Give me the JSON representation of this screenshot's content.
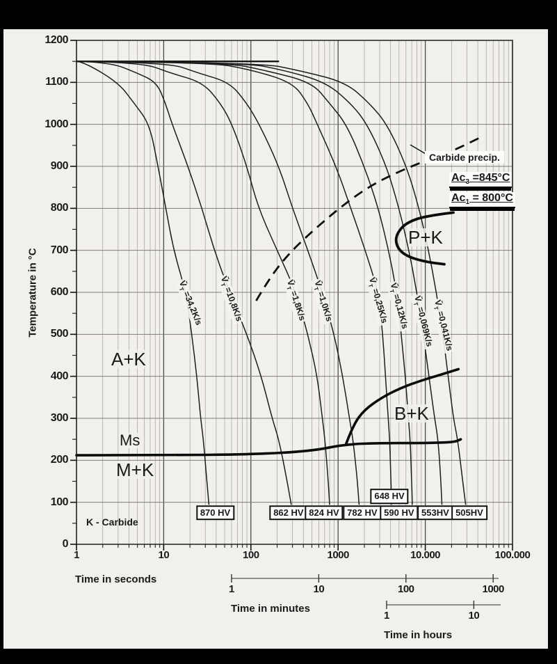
{
  "y_axis": {
    "label": "Temperature in °C",
    "ticks": [
      "0",
      "100",
      "200",
      "300",
      "400",
      "500",
      "600",
      "700",
      "800",
      "900",
      "1000",
      "1100",
      "1200"
    ],
    "min": 0,
    "max": 1200
  },
  "x_axis_seconds": {
    "label": "Time in seconds",
    "ticks": [
      "1",
      "10",
      "100",
      "1000",
      "10.000",
      "100.000"
    ]
  },
  "x_axis_minutes": {
    "label": "Time in minutes",
    "ticks": [
      "1",
      "10",
      "100",
      "1000"
    ]
  },
  "x_axis_hours": {
    "label": "Time in hours",
    "ticks": [
      "1",
      "10"
    ]
  },
  "regions": {
    "austenite_carbide": "A+K",
    "pearlite_carbide": "P+K",
    "bainite_carbide": "B+K",
    "martensite_start": "Ms",
    "martensite_carbide": "M+K"
  },
  "annotations": {
    "carbide_precip": "Carbide precip.",
    "ac3": {
      "prefix": "Ac",
      "sub": "3",
      "value": "=845°C"
    },
    "ac1": {
      "prefix": "Ac",
      "sub": "1",
      "value": "= 800°C"
    },
    "k_legend": "K - Carbide"
  },
  "chart_data": {
    "type": "line",
    "x_scale": "log",
    "x_range_seconds": [
      1,
      100000
    ],
    "y_range_celsius": [
      0,
      1200
    ],
    "austenitization_temp_c": 1150,
    "grid": true,
    "vt_prefix": "V̄",
    "vt_sub": "T",
    "series": [
      {
        "name": "cooling-curve-34.2",
        "rate_k_per_s": 34.2,
        "label": "=34,2K/s",
        "hardness_hv": 870,
        "label_t": 19.6,
        "label_temp": 574,
        "label_angle": 68,
        "points": [
          [
            1,
            1150
          ],
          [
            1.2,
            1149
          ],
          [
            3,
            1100
          ],
          [
            4.6,
            1050
          ],
          [
            6.9,
            1000
          ],
          [
            8.6,
            900
          ],
          [
            10.6,
            800
          ],
          [
            13,
            700
          ],
          [
            18,
            600
          ],
          [
            21,
            500
          ],
          [
            24,
            400
          ],
          [
            26.5,
            300
          ],
          [
            28.5,
            250
          ],
          [
            31,
            160
          ],
          [
            33,
            95
          ]
        ]
      },
      {
        "name": "cooling-curve-10.8",
        "rate_k_per_s": 10.8,
        "label": "=10,8K/s",
        "hardness_hv": 862,
        "label_t": 58,
        "label_temp": 584,
        "label_angle": 70,
        "points": [
          [
            1,
            1150
          ],
          [
            2.4,
            1148
          ],
          [
            5,
            1122
          ],
          [
            8.3,
            1100
          ],
          [
            10.5,
            1050
          ],
          [
            12.5,
            1000
          ],
          [
            19,
            900
          ],
          [
            27.5,
            800
          ],
          [
            38,
            700
          ],
          [
            57,
            600
          ],
          [
            90,
            500
          ],
          [
            132,
            400
          ],
          [
            175,
            300
          ],
          [
            209,
            250
          ],
          [
            255,
            160
          ],
          [
            290,
            95
          ]
        ]
      },
      {
        "name": "cooling-curve-1.8",
        "rate_k_per_s": 1.8,
        "label": "=1,8K/s",
        "hardness_hv": 824,
        "label_t": 320,
        "label_temp": 580,
        "label_angle": 72,
        "points": [
          [
            1,
            1150
          ],
          [
            5.5,
            1148
          ],
          [
            12,
            1122
          ],
          [
            28,
            1100
          ],
          [
            45,
            1050
          ],
          [
            61,
            1000
          ],
          [
            90,
            900
          ],
          [
            122,
            800
          ],
          [
            200,
            700
          ],
          [
            330,
            600
          ],
          [
            450,
            500
          ],
          [
            577,
            400
          ],
          [
            660,
            300
          ],
          [
            705,
            250
          ],
          [
            765,
            160
          ],
          [
            800,
            95
          ]
        ]
      },
      {
        "name": "cooling-curve-1.0",
        "rate_k_per_s": 1.0,
        "label": "=1,0K/s",
        "hardness_hv": 782,
        "label_t": 650,
        "label_temp": 579,
        "label_angle": 73,
        "points": [
          [
            1,
            1150
          ],
          [
            11,
            1148
          ],
          [
            25,
            1122
          ],
          [
            57,
            1100
          ],
          [
            90,
            1050
          ],
          [
            125,
            1000
          ],
          [
            210,
            900
          ],
          [
            300,
            800
          ],
          [
            450,
            700
          ],
          [
            660,
            600
          ],
          [
            900,
            500
          ],
          [
            1130,
            400
          ],
          [
            1350,
            300
          ],
          [
            1480,
            250
          ],
          [
            1650,
            160
          ],
          [
            1740,
            95
          ]
        ]
      },
      {
        "name": "cooling-curve-0.25",
        "rate_k_per_s": 0.25,
        "label": "=0,25K/s",
        "hardness_hv": 648,
        "label_t": 2800,
        "label_temp": 580,
        "label_angle": 74,
        "points": [
          [
            1,
            1150
          ],
          [
            33,
            1148
          ],
          [
            100,
            1130
          ],
          [
            300,
            1100
          ],
          [
            450,
            1050
          ],
          [
            577,
            1000
          ],
          [
            950,
            900
          ],
          [
            1400,
            800
          ],
          [
            2050,
            700
          ],
          [
            2900,
            600
          ],
          [
            3250,
            500
          ],
          [
            3500,
            400
          ],
          [
            3750,
            300
          ],
          [
            3900,
            250
          ],
          [
            4030,
            160
          ],
          [
            4100,
            95
          ]
        ]
      },
      {
        "name": "cooling-curve-0.12",
        "rate_k_per_s": 0.12,
        "label": "=0,12K/s",
        "hardness_hv": 590,
        "label_t": 4800,
        "label_temp": 567,
        "label_angle": 75,
        "points": [
          [
            1,
            1150
          ],
          [
            50,
            1148
          ],
          [
            150,
            1128
          ],
          [
            500,
            1100
          ],
          [
            800,
            1050
          ],
          [
            1250,
            1000
          ],
          [
            2000,
            900
          ],
          [
            2900,
            800
          ],
          [
            3800,
            700
          ],
          [
            4700,
            600
          ],
          [
            5300,
            500
          ],
          [
            5900,
            400
          ],
          [
            6400,
            300
          ],
          [
            6700,
            250
          ],
          [
            6950,
            160
          ],
          [
            7100,
            95
          ]
        ]
      },
      {
        "name": "cooling-curve-0.069",
        "rate_k_per_s": 0.069,
        "label": "=0,069K/s",
        "hardness_hv": 553,
        "label_t": 9200,
        "label_temp": 531,
        "label_angle": 76,
        "points": [
          [
            1,
            1150
          ],
          [
            80,
            1148
          ],
          [
            250,
            1128
          ],
          [
            725,
            1100
          ],
          [
            1400,
            1050
          ],
          [
            2170,
            1000
          ],
          [
            3600,
            900
          ],
          [
            5000,
            800
          ],
          [
            6500,
            700
          ],
          [
            8000,
            600
          ],
          [
            9500,
            500
          ],
          [
            11000,
            400
          ],
          [
            12800,
            300
          ],
          [
            14000,
            250
          ],
          [
            15000,
            160
          ],
          [
            15500,
            95
          ]
        ]
      },
      {
        "name": "cooling-curve-0.041",
        "rate_k_per_s": 0.041,
        "label": "=0,041K/s",
        "hardness_hv": 505,
        "label_t": 15700,
        "label_temp": 521,
        "label_angle": 76,
        "points": [
          [
            1,
            1150
          ],
          [
            120,
            1148
          ],
          [
            400,
            1126
          ],
          [
            1220,
            1100
          ],
          [
            2300,
            1050
          ],
          [
            3660,
            1000
          ],
          [
            6100,
            900
          ],
          [
            8500,
            800
          ],
          [
            10900,
            700
          ],
          [
            13400,
            600
          ],
          [
            15900,
            500
          ],
          [
            18300,
            400
          ],
          [
            21000,
            300
          ],
          [
            23500,
            250
          ],
          [
            26500,
            160
          ],
          [
            29000,
            95
          ]
        ]
      }
    ],
    "ms_line": {
      "name": "martensite-start-line",
      "points": [
        [
          1,
          212
        ],
        [
          10,
          212
        ],
        [
          100,
          214
        ],
        [
          500,
          222
        ],
        [
          1200,
          238
        ],
        [
          3000,
          241
        ],
        [
          8000,
          241
        ],
        [
          15000,
          242
        ],
        [
          22000,
          244
        ],
        [
          25500,
          250
        ]
      ]
    },
    "bainite_start": {
      "name": "bainite-start-boundary",
      "points": [
        [
          1240,
          240
        ],
        [
          1500,
          285
        ],
        [
          2000,
          320
        ],
        [
          3200,
          350
        ],
        [
          5200,
          372
        ],
        [
          9000,
          390
        ],
        [
          14500,
          403
        ],
        [
          24000,
          417
        ]
      ]
    },
    "pearlite_region": {
      "name": "pearlite-nose-boundary",
      "points": [
        [
          21000,
          790
        ],
        [
          10000,
          782
        ],
        [
          6000,
          765
        ],
        [
          4800,
          742
        ],
        [
          4550,
          722
        ],
        [
          5000,
          700
        ],
        [
          6600,
          683
        ],
        [
          10500,
          672
        ],
        [
          16500,
          667
        ]
      ]
    },
    "carbide_precipitation": {
      "name": "carbide-precip-dashed",
      "style": "dashed",
      "points": [
        [
          115,
          580
        ],
        [
          170,
          640
        ],
        [
          295,
          700
        ],
        [
          570,
          755
        ],
        [
          1100,
          805
        ],
        [
          2300,
          853
        ],
        [
          4800,
          886
        ],
        [
          9900,
          913
        ],
        [
          20900,
          937
        ],
        [
          46000,
          972
        ]
      ]
    },
    "hardness_labels": [
      {
        "text": "870 HV",
        "value": 870,
        "t": 39,
        "temp": 75
      },
      {
        "text": "862 HV",
        "value": 862,
        "t": 270,
        "temp": 75
      },
      {
        "text": "824 HV",
        "value": 824,
        "t": 690,
        "temp": 75
      },
      {
        "text": "782 HV",
        "value": 782,
        "t": 1890,
        "temp": 75
      },
      {
        "text": "648 HV",
        "value": 648,
        "t": 3880,
        "temp": 114
      },
      {
        "text": "590 HV",
        "value": 590,
        "t": 5000,
        "temp": 75
      },
      {
        "text": "553HV",
        "value": 553,
        "t": 13000,
        "temp": 75
      },
      {
        "text": "505HV",
        "value": 505,
        "t": 32000,
        "temp": 75
      }
    ]
  }
}
